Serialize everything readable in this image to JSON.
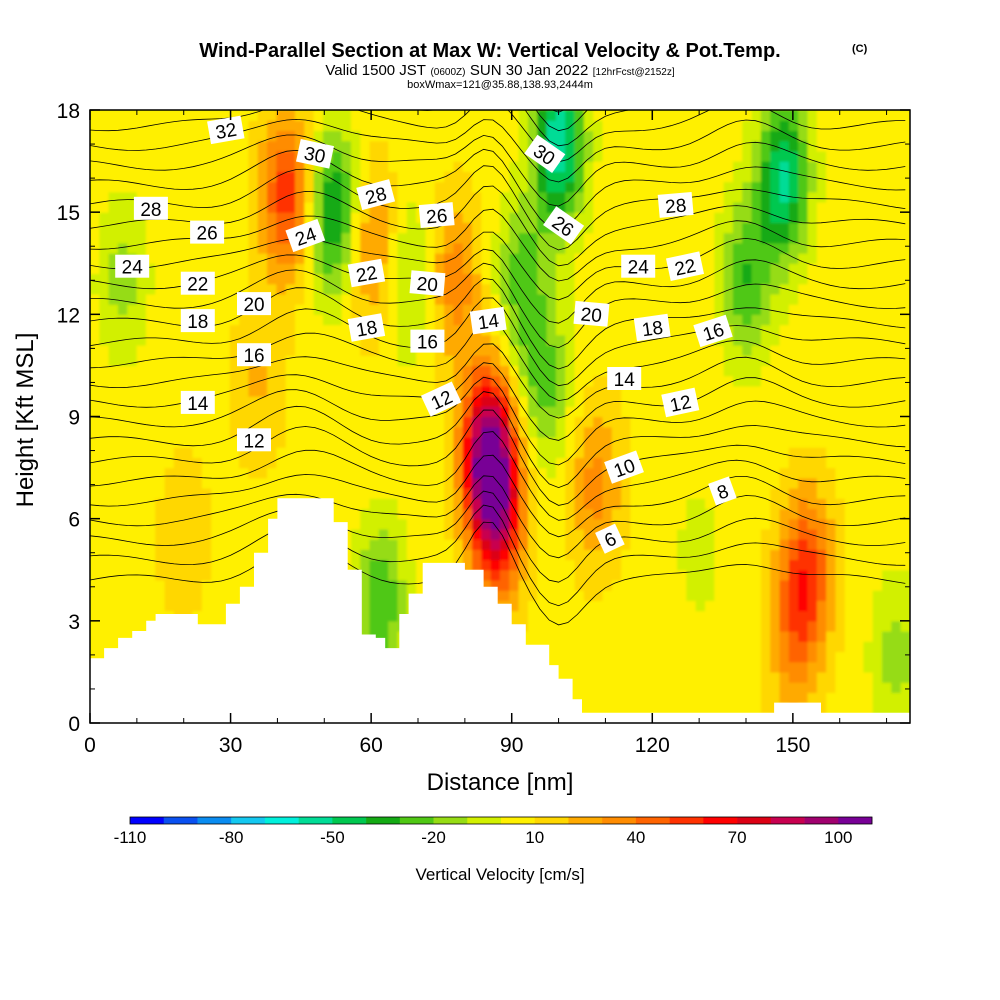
{
  "chart_data": {
    "type": "heatmap",
    "title": "Wind-Parallel Section at Max W: Vertical Velocity & Pot.Temp.",
    "title_mark": "(C)",
    "subtitle": {
      "a": "Valid 1500 JST",
      "b": "(0600Z)",
      "c": "SUN 30 Jan 2022",
      "d": "[12hrFcst@2152z]"
    },
    "subtitle2": "boxWmax=121@35.88,138.93,2444m",
    "xlabel": "Distance [nm]",
    "ylabel": "Height [Kft MSL]",
    "xlim": [
      0,
      175
    ],
    "ylim": [
      0,
      18
    ],
    "x_ticks": [
      0,
      30,
      60,
      90,
      120,
      150
    ],
    "y_ticks": [
      0,
      3,
      6,
      9,
      12,
      15,
      18
    ],
    "colorbar": {
      "label": "Vertical Velocity [cm/s]",
      "range": [
        -110,
        110
      ],
      "step": 10,
      "tick_labels": [
        -110,
        -80,
        -50,
        -20,
        10,
        40,
        70,
        100
      ],
      "colors": [
        "#0000ff",
        "#0a50f0",
        "#0a8cf0",
        "#14c8f0",
        "#00f0dc",
        "#00dc96",
        "#00c850",
        "#14aa14",
        "#50c814",
        "#96dc14",
        "#d2f000",
        "#fff000",
        "#ffd700",
        "#ffaa00",
        "#ff8c00",
        "#ff6400",
        "#ff3200",
        "#ff0000",
        "#dc0014",
        "#c80050",
        "#a0006e",
        "#780096"
      ]
    },
    "velocity_features": [
      {
        "x": 85,
        "z": 8.0,
        "w": 92
      },
      {
        "x": 87,
        "z": 6.0,
        "w": 65
      },
      {
        "x": 42,
        "z": 15.5,
        "w": 50
      },
      {
        "x": 60,
        "z": 14.0,
        "w": 30
      },
      {
        "x": 153,
        "z": 4.5,
        "w": 45
      },
      {
        "x": 150,
        "z": 2.5,
        "w": 25
      },
      {
        "x": 36,
        "z": 10.0,
        "w": 15
      },
      {
        "x": 78,
        "z": 13.0,
        "w": 30
      },
      {
        "x": 108,
        "z": 7.0,
        "w": 28
      },
      {
        "x": 92,
        "z": 13.0,
        "w": -30
      },
      {
        "x": 100,
        "z": 17.0,
        "w": -65
      },
      {
        "x": 97,
        "z": 10.0,
        "w": -30
      },
      {
        "x": 52,
        "z": 15.0,
        "w": -50
      },
      {
        "x": 148,
        "z": 16.0,
        "w": -58
      },
      {
        "x": 140,
        "z": 13.0,
        "w": -35
      },
      {
        "x": 7,
        "z": 13.0,
        "w": -20
      },
      {
        "x": 62,
        "z": 3.5,
        "w": -35
      },
      {
        "x": 68,
        "z": 13.0,
        "w": -20
      },
      {
        "x": 172,
        "z": 2.0,
        "w": -20
      },
      {
        "x": 130,
        "z": 5.0,
        "w": -10
      },
      {
        "x": 20,
        "z": 5.5,
        "w": 12
      }
    ],
    "theta_labels": [
      {
        "value": "32",
        "x": 29,
        "z": 17.4,
        "angle": -10
      },
      {
        "value": "30",
        "x": 48,
        "z": 16.7,
        "angle": 12
      },
      {
        "value": "30",
        "x": 97,
        "z": 16.7,
        "angle": 35
      },
      {
        "value": "28",
        "x": 13,
        "z": 15.1,
        "angle": 0
      },
      {
        "value": "28",
        "x": 61,
        "z": 15.5,
        "angle": -15
      },
      {
        "value": "28",
        "x": 125,
        "z": 15.2,
        "angle": -5
      },
      {
        "value": "26",
        "x": 25,
        "z": 14.4,
        "angle": 0
      },
      {
        "value": "26",
        "x": 74,
        "z": 14.9,
        "angle": -5
      },
      {
        "value": "26",
        "x": 101,
        "z": 14.6,
        "angle": 35
      },
      {
        "value": "24",
        "x": 9,
        "z": 13.4,
        "angle": 0
      },
      {
        "value": "24",
        "x": 46,
        "z": 14.3,
        "angle": -20
      },
      {
        "value": "24",
        "x": 117,
        "z": 13.4,
        "angle": 0
      },
      {
        "value": "22",
        "x": 23,
        "z": 12.9,
        "angle": 0
      },
      {
        "value": "22",
        "x": 59,
        "z": 13.2,
        "angle": -10
      },
      {
        "value": "22",
        "x": 127,
        "z": 13.4,
        "angle": -12
      },
      {
        "value": "20",
        "x": 35,
        "z": 12.3,
        "angle": 0
      },
      {
        "value": "20",
        "x": 72,
        "z": 12.9,
        "angle": 5
      },
      {
        "value": "20",
        "x": 107,
        "z": 12.0,
        "angle": 5
      },
      {
        "value": "18",
        "x": 23,
        "z": 11.8,
        "angle": 0
      },
      {
        "value": "18",
        "x": 59,
        "z": 11.6,
        "angle": -10
      },
      {
        "value": "18",
        "x": 120,
        "z": 11.6,
        "angle": -8
      },
      {
        "value": "16",
        "x": 35,
        "z": 10.8,
        "angle": 0
      },
      {
        "value": "16",
        "x": 72,
        "z": 11.2,
        "angle": 0
      },
      {
        "value": "16",
        "x": 133,
        "z": 11.5,
        "angle": -18
      },
      {
        "value": "14",
        "x": 23,
        "z": 9.4,
        "angle": 0
      },
      {
        "value": "14",
        "x": 85,
        "z": 11.8,
        "angle": -8
      },
      {
        "value": "14",
        "x": 114,
        "z": 10.1,
        "angle": 0
      },
      {
        "value": "12",
        "x": 35,
        "z": 8.3,
        "angle": 0
      },
      {
        "value": "12",
        "x": 75,
        "z": 9.5,
        "angle": -25
      },
      {
        "value": "12",
        "x": 126,
        "z": 9.4,
        "angle": -12
      },
      {
        "value": "10",
        "x": 114,
        "z": 7.5,
        "angle": -20
      },
      {
        "value": "8",
        "x": 135,
        "z": 6.8,
        "angle": -20
      },
      {
        "value": "6",
        "x": 111,
        "z": 5.4,
        "angle": -25
      }
    ],
    "terrain": [
      [
        0,
        1.9
      ],
      [
        3,
        1.9
      ],
      [
        3,
        2.2
      ],
      [
        6,
        2.2
      ],
      [
        6,
        2.5
      ],
      [
        9,
        2.5
      ],
      [
        9,
        2.7
      ],
      [
        12,
        2.7
      ],
      [
        12,
        3.0
      ],
      [
        14,
        3.0
      ],
      [
        14,
        3.2
      ],
      [
        23,
        3.2
      ],
      [
        23,
        2.9
      ],
      [
        29,
        2.9
      ],
      [
        29,
        3.5
      ],
      [
        32,
        3.5
      ],
      [
        32,
        4.0
      ],
      [
        35,
        4.0
      ],
      [
        35,
        5.0
      ],
      [
        38,
        5.0
      ],
      [
        38,
        6.0
      ],
      [
        40,
        6.0
      ],
      [
        40,
        6.6
      ],
      [
        52,
        6.6
      ],
      [
        52,
        5.9
      ],
      [
        55,
        5.9
      ],
      [
        55,
        4.5
      ],
      [
        58,
        4.5
      ],
      [
        58,
        2.6
      ],
      [
        61,
        2.6
      ],
      [
        61,
        2.5
      ],
      [
        63,
        2.5
      ],
      [
        63,
        2.2
      ],
      [
        66,
        2.2
      ],
      [
        66,
        3.2
      ],
      [
        68,
        3.2
      ],
      [
        68,
        3.8
      ],
      [
        71,
        3.8
      ],
      [
        71,
        4.7
      ],
      [
        80,
        4.7
      ],
      [
        80,
        4.5
      ],
      [
        84,
        4.5
      ],
      [
        84,
        4.0
      ],
      [
        87,
        4.0
      ],
      [
        87,
        3.5
      ],
      [
        90,
        3.5
      ],
      [
        90,
        2.9
      ],
      [
        93,
        2.9
      ],
      [
        93,
        2.3
      ],
      [
        98,
        2.3
      ],
      [
        98,
        1.7
      ],
      [
        100,
        1.7
      ],
      [
        100,
        1.3
      ],
      [
        103,
        1.3
      ],
      [
        103,
        0.7
      ],
      [
        105,
        0.7
      ],
      [
        105,
        0.3
      ],
      [
        146,
        0.3
      ],
      [
        146,
        0.6
      ],
      [
        156,
        0.6
      ],
      [
        156,
        0.3
      ],
      [
        175,
        0.3
      ]
    ]
  }
}
